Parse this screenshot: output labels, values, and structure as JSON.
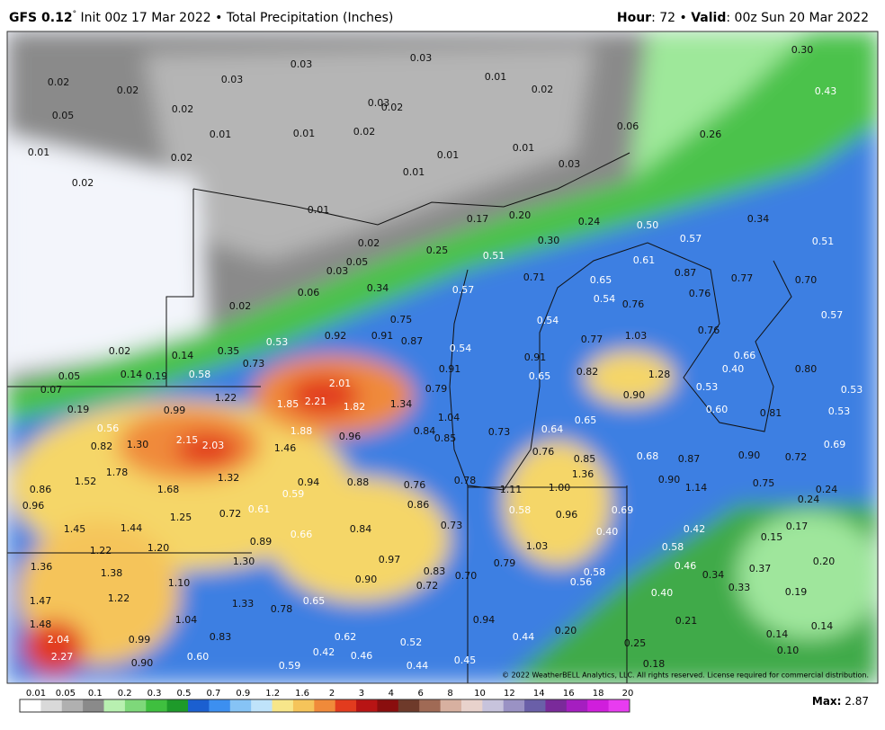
{
  "header": {
    "left": [
      "GFS 0.12",
      "°",
      " Init 00z 17 Mar 2022 • Total Precipitation (Inches)"
    ],
    "right": [
      "Hour",
      ": 72 • ",
      "Valid",
      ": 00z Sun 20 Mar 2022"
    ]
  },
  "map": {
    "labels": [
      "0.03",
      "0.03",
      "0.03",
      "0.02",
      "0.02",
      "0.01",
      "0.02",
      "0.03",
      "0.02",
      "0.05",
      "0.02",
      "0.30",
      "0.43",
      "0.01",
      "0.01",
      "0.02",
      "0.06",
      "0.26",
      "0.01",
      "0.02",
      "0.01",
      "0.01",
      "0.03",
      "0.01",
      "0.02",
      "0.01",
      "0.17",
      "0.20",
      "0.24",
      "0.50",
      "0.34",
      "0.02",
      "0.25",
      "0.30",
      "0.57",
      "0.51",
      "0.05",
      "0.51",
      "0.61",
      "0.03",
      "0.71",
      "0.65",
      "0.87",
      "0.77",
      "0.70",
      "0.06",
      "0.34",
      "0.57",
      "0.54",
      "0.76",
      "0.76",
      "0.02",
      "0.75",
      "0.54",
      "0.57",
      "0.53",
      "0.92",
      "0.91",
      "0.87",
      "0.54",
      "0.77",
      "1.03",
      "0.76",
      "0.02",
      "0.14",
      "0.35",
      "0.73",
      "0.91",
      "0.66",
      "0.40",
      "0.05",
      "0.14",
      "0.19",
      "0.58",
      "0.91",
      "0.65",
      "0.82",
      "1.28",
      "0.80",
      "0.07",
      "2.01",
      "0.79",
      "0.90",
      "0.53",
      "0.53",
      "1.22",
      "1.85",
      "2.21",
      "1.82",
      "1.34",
      "0.19",
      "0.99",
      "0.60",
      "0.81",
      "0.53",
      "1.04",
      "0.65",
      "0.56",
      "1.88",
      "0.84",
      "0.73",
      "0.64",
      "0.96",
      "0.85",
      "2.15",
      "2.03",
      "0.82",
      "1.30",
      "1.46",
      "0.76",
      "0.68",
      "0.87",
      "0.90",
      "0.72",
      "0.69",
      "0.85",
      "1.78",
      "1.36",
      "1.52",
      "1.32",
      "0.94",
      "0.88",
      "0.76",
      "0.78",
      "0.90",
      "1.14",
      "0.75",
      "0.86",
      "1.68",
      "1.11",
      "1.00",
      "0.59",
      "0.24",
      "0.24",
      "0.96",
      "0.86",
      "0.58",
      "0.96",
      "0.69",
      "1.25",
      "0.72",
      "0.61",
      "1.45",
      "1.44",
      "0.84",
      "0.73",
      "0.40",
      "0.42",
      "0.66",
      "0.17",
      "0.15",
      "0.89",
      "1.20",
      "1.22",
      "1.03",
      "0.58",
      "1.30",
      "0.97",
      "0.20",
      "1.36",
      "1.38",
      "0.83",
      "0.79",
      "0.58",
      "0.46",
      "0.37",
      "0.70",
      "0.90",
      "1.10",
      "0.34",
      "0.56",
      "0.72",
      "0.33",
      "0.19",
      "1.47",
      "1.22",
      "1.33",
      "0.65",
      "0.40",
      "0.78",
      "0.94",
      "1.04",
      "0.21",
      "1.48",
      "0.14",
      "0.20",
      "0.62",
      "0.52",
      "0.44",
      "0.83",
      "2.04",
      "0.99",
      "0.14",
      "2.27",
      "0.42",
      "0.46",
      "0.60",
      "0.25",
      "0.10",
      "0.45",
      "0.90",
      "0.59",
      "0.44",
      "0.18"
    ],
    "copyright": "© 2022 WeatherBELL Analytics, LLC. All rights reserved. License required for commercial distribution."
  },
  "legend": {
    "labels": [
      "0.01",
      "0.05",
      "0.1",
      "0.2",
      "0.3",
      "0.5",
      "0.7",
      "0.9",
      "1.2",
      "1.6",
      "2",
      "3",
      "4",
      "6",
      "8",
      "10",
      "12",
      "14",
      "16",
      "18",
      "20"
    ]
  },
  "footer": {
    "max_label": "Max:",
    "max": " 2.87"
  }
}
